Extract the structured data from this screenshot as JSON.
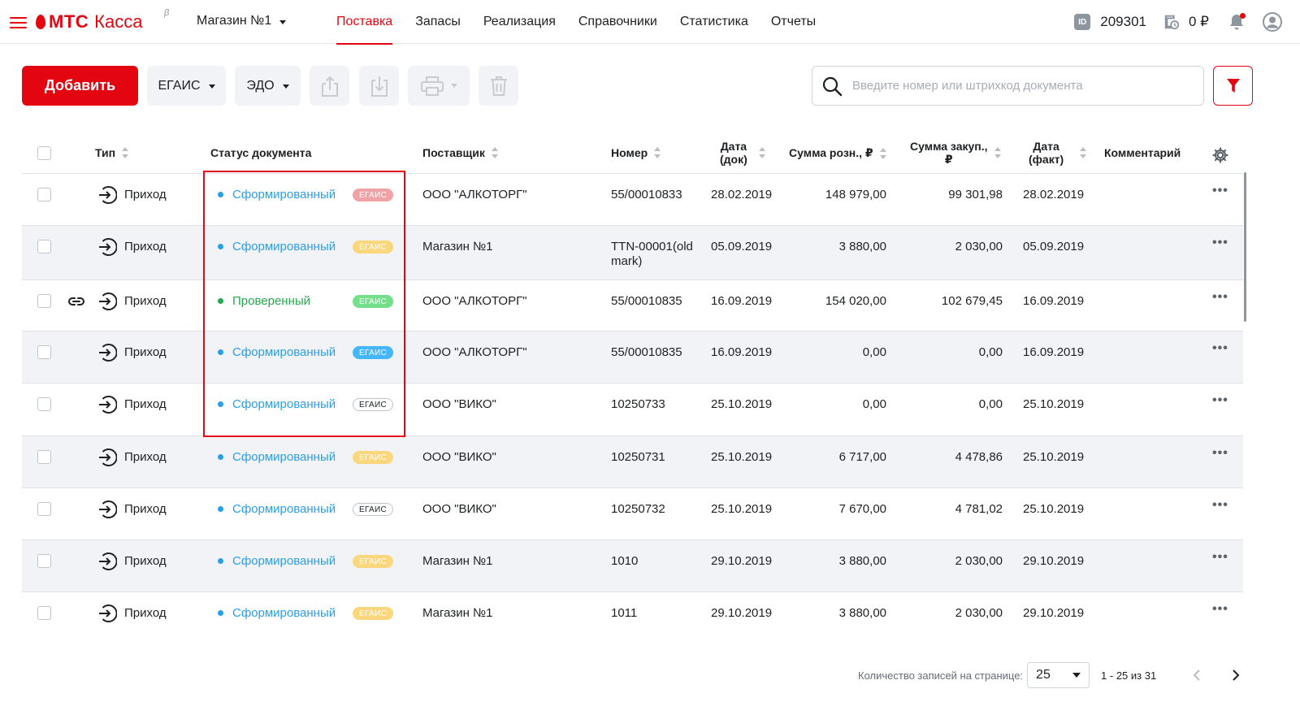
{
  "app": {
    "brand": "МТС",
    "product": "Касса",
    "beta_mark": "β",
    "store": "Магазин №1",
    "nav": [
      "Поставка",
      "Запасы",
      "Реализация",
      "Справочники",
      "Статистика",
      "Отчеты"
    ],
    "active_nav": "Поставка",
    "id_label": "ID",
    "id_value": "209301",
    "balance": "0 ₽"
  },
  "toolbar": {
    "add_label": "Добавить",
    "egais_label": "ЕГАИС",
    "edo_label": "ЭДО",
    "search_placeholder": "Введите номер или штрихкод документа"
  },
  "table": {
    "columns": {
      "type": "Тип",
      "status": "Статус документа",
      "supplier": "Поставщик",
      "number": "Номер",
      "date_doc_1": "Дата",
      "date_doc_2": "(док)",
      "sum_retail": "Сумма розн., ₽",
      "sum_purchase_1": "Сумма закуп.,",
      "sum_purchase_2": "₽",
      "date_fact_1": "Дата",
      "date_fact_2": "(факт)",
      "comment": "Комментарий"
    },
    "rows": [
      {
        "type": "Приход",
        "status": "Сформированный",
        "badge": "ЕГАИС",
        "supplier": "ООО \"АЛКОТОРГ\"",
        "number": "55/00010833",
        "number2": "",
        "date_doc": "28.02.2019",
        "sum_retail": "148 979,00",
        "sum_purchase": "99 301,98",
        "date_fact": "28.02.2019",
        "linked": false
      },
      {
        "type": "Приход",
        "status": "Сформированный",
        "badge": "ЕГАИС",
        "supplier": "Магазин №1",
        "number": "TTN-00001(old",
        "number2": "mark)",
        "date_doc": "05.09.2019",
        "sum_retail": "3 880,00",
        "sum_purchase": "2 030,00",
        "date_fact": "05.09.2019",
        "linked": false
      },
      {
        "type": "Приход",
        "status": "Проверенный",
        "badge": "ЕГАИС",
        "supplier": "ООО \"АЛКОТОРГ\"",
        "number": "55/00010835",
        "number2": "",
        "date_doc": "16.09.2019",
        "sum_retail": "154 020,00",
        "sum_purchase": "102 679,45",
        "date_fact": "16.09.2019",
        "linked": true
      },
      {
        "type": "Приход",
        "status": "Сформированный",
        "badge": "ЕГАИС",
        "supplier": "ООО \"АЛКОТОРГ\"",
        "number": "55/00010835",
        "number2": "",
        "date_doc": "16.09.2019",
        "sum_retail": "0,00",
        "sum_purchase": "0,00",
        "date_fact": "16.09.2019",
        "linked": false
      },
      {
        "type": "Приход",
        "status": "Сформированный",
        "badge": "ЕГАИС",
        "supplier": "ООО \"ВИКО\"",
        "number": "10250733",
        "number2": "",
        "date_doc": "25.10.2019",
        "sum_retail": "0,00",
        "sum_purchase": "0,00",
        "date_fact": "25.10.2019",
        "linked": false
      },
      {
        "type": "Приход",
        "status": "Сформированный",
        "badge": "ЕГАИС",
        "supplier": "ООО \"ВИКО\"",
        "number": "10250731",
        "number2": "",
        "date_doc": "25.10.2019",
        "sum_retail": "6 717,00",
        "sum_purchase": "4 478,86",
        "date_fact": "25.10.2019",
        "linked": false
      },
      {
        "type": "Приход",
        "status": "Сформированный",
        "badge": "ЕГАИС",
        "supplier": "ООО \"ВИКО\"",
        "number": "10250732",
        "number2": "",
        "date_doc": "25.10.2019",
        "sum_retail": "7 670,00",
        "sum_purchase": "4 781,02",
        "date_fact": "25.10.2019",
        "linked": false
      },
      {
        "type": "Приход",
        "status": "Сформированный",
        "badge": "ЕГАИС",
        "supplier": "Магазин №1",
        "number": "1010",
        "number2": "",
        "date_doc": "29.10.2019",
        "sum_retail": "3 880,00",
        "sum_purchase": "2 030,00",
        "date_fact": "29.10.2019",
        "linked": false
      },
      {
        "type": "Приход",
        "status": "Сформированный",
        "badge": "ЕГАИС",
        "supplier": "Магазин №1",
        "number": "1011",
        "number2": "",
        "date_doc": "29.10.2019",
        "sum_retail": "3 880,00",
        "sum_purchase": "2 030,00",
        "date_fact": "29.10.2019",
        "linked": false
      }
    ],
    "status_colors": {
      "Сформированный": "#2b9ee8",
      "Проверенный": "#26a74d"
    },
    "badge_styles": [
      {
        "bg": "#f0a3a6",
        "fg": "#ffffff",
        "border": "#f0a3a6"
      },
      {
        "bg": "#fad67d",
        "fg": "#ffffff",
        "border": "#fad67d"
      },
      {
        "bg": "#74df8b",
        "fg": "#ffffff",
        "border": "#74df8b"
      },
      {
        "bg": "#45b6fc",
        "fg": "#ffffff",
        "border": "#45b6fc"
      },
      {
        "bg": "#ffffff",
        "fg": "#1d2023",
        "border": "#bfc5cc"
      },
      {
        "bg": "#fad67d",
        "fg": "#ffffff",
        "border": "#fad67d"
      },
      {
        "bg": "#ffffff",
        "fg": "#1d2023",
        "border": "#bfc5cc"
      },
      {
        "bg": "#fad67d",
        "fg": "#ffffff",
        "border": "#fad67d"
      },
      {
        "bg": "#fad67d",
        "fg": "#ffffff",
        "border": "#fad67d"
      }
    ]
  },
  "pagination": {
    "label": "Количество записей на странице:",
    "page_size": "25",
    "range": "1 - 25 из 31"
  },
  "colors": {
    "accent": "#e30611"
  }
}
